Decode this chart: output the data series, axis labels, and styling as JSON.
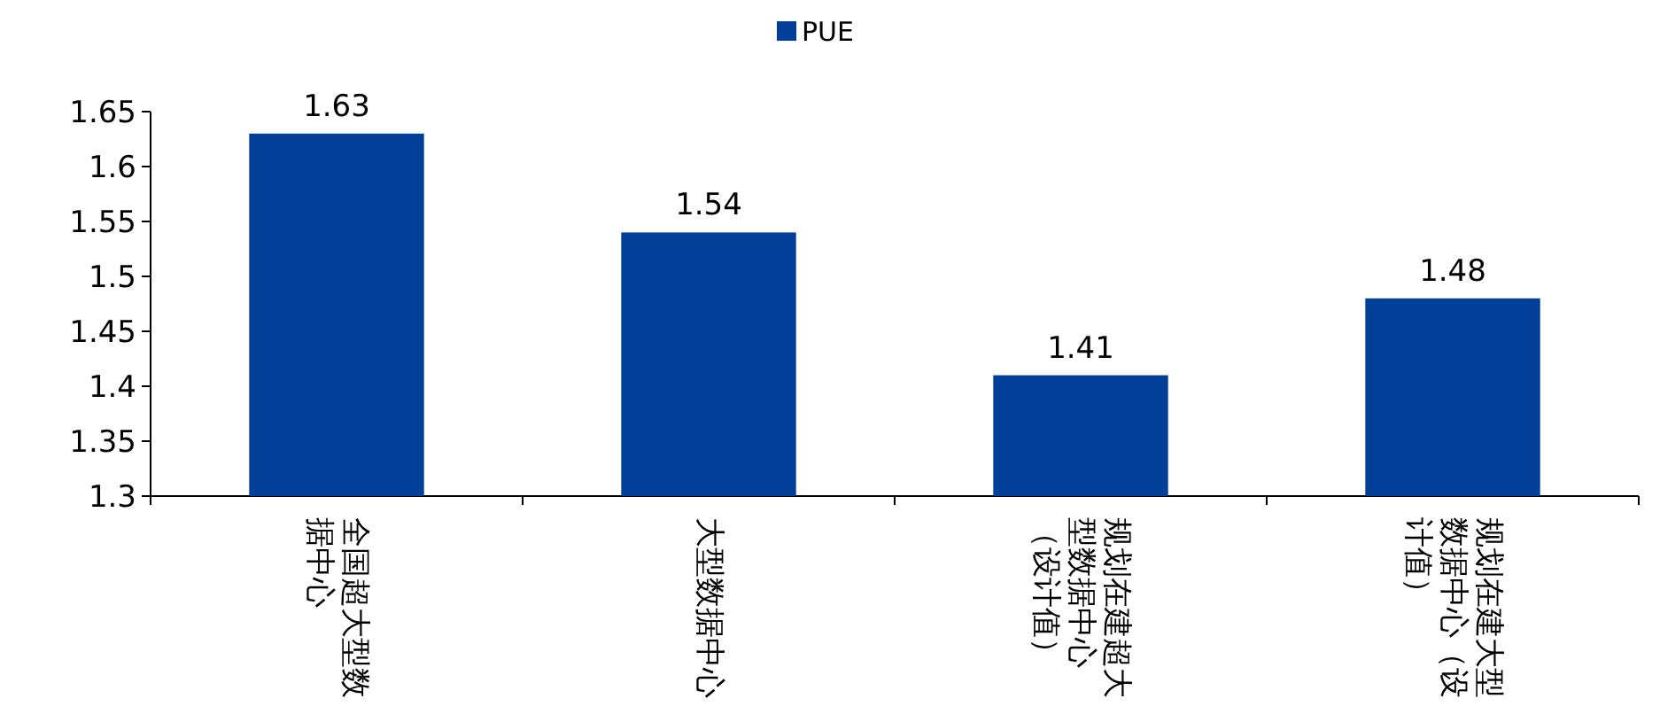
{
  "chart_data": {
    "type": "bar",
    "categories": [
      "全国超大型数据中心",
      "大型数据中心",
      "规划在建超大型数据中心（设计值）",
      "规划在建大型数据中心（设计值）"
    ],
    "series": [
      {
        "name": "PUE",
        "color": "#023f99",
        "values": [
          1.63,
          1.54,
          1.41,
          1.48
        ]
      }
    ],
    "ylim": [
      1.3,
      1.65
    ],
    "yticks": [
      1.3,
      1.35,
      1.4,
      1.45,
      1.5,
      1.55,
      1.6,
      1.65
    ],
    "data_labels": true,
    "legend": "top",
    "grid": false
  }
}
